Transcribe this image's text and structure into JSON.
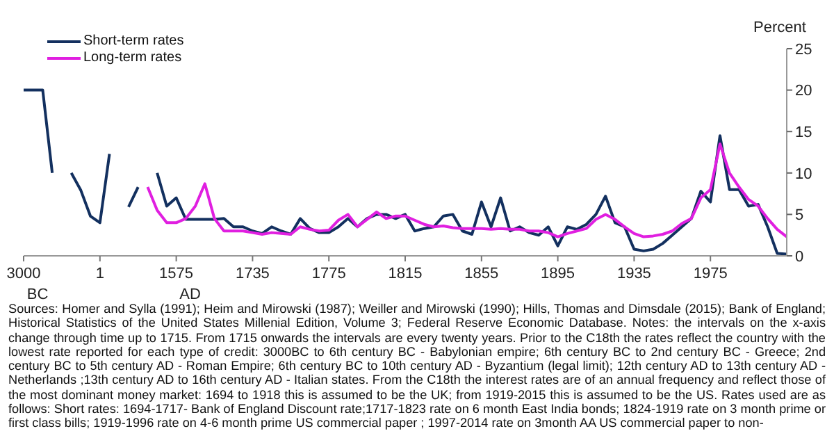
{
  "chart_data": {
    "type": "line",
    "ylabel": "Percent",
    "legend": "top left",
    "marker": "none",
    "grid": false,
    "categories": [
      "3000 BC",
      null,
      null,
      null,
      null,
      null,
      null,
      null,
      "1",
      null,
      null,
      null,
      null,
      null,
      null,
      null,
      "1575 AD",
      null,
      null,
      null,
      null,
      null,
      null,
      null,
      "1735",
      null,
      null,
      null,
      null,
      null,
      null,
      null,
      "1775",
      null,
      null,
      null,
      null,
      null,
      null,
      null,
      "1815",
      null,
      null,
      null,
      null,
      null,
      null,
      null,
      "1855",
      null,
      null,
      null,
      null,
      null,
      null,
      null,
      "1895",
      null,
      null,
      null,
      null,
      null,
      null,
      null,
      "1935",
      null,
      null,
      null,
      null,
      null,
      null,
      null,
      "1975",
      null,
      null,
      null,
      null,
      null,
      null,
      null,
      null
    ],
    "series": [
      {
        "name": "Short-term rates",
        "color": "#13305f",
        "values": [
          20,
          20,
          20,
          10,
          null,
          10,
          7.9,
          4.8,
          4,
          12.3,
          null,
          5.9,
          8.3,
          null,
          10,
          6,
          7,
          4.4,
          4.4,
          4.4,
          4.4,
          4.5,
          3.5,
          3.5,
          3,
          2.7,
          3.5,
          3,
          2.6,
          4.5,
          3.3,
          2.8,
          2.8,
          3.5,
          4.5,
          3.5,
          4.5,
          5,
          5,
          4.5,
          5,
          3,
          3.3,
          3.5,
          4.8,
          5,
          3,
          2.6,
          6.5,
          3.5,
          7,
          3,
          3.5,
          2.8,
          2.5,
          3.5,
          1.2,
          3.5,
          3.2,
          3.8,
          5,
          7.2,
          4,
          3.5,
          0.8,
          0.6,
          0.8,
          1.5,
          2.5,
          3.5,
          4.5,
          7.8,
          6.5,
          14.5,
          8,
          8,
          6,
          6.2,
          3.5,
          0.3,
          0.2
        ]
      },
      {
        "name": "Long-term rates",
        "color": "#e01fe0",
        "values": [
          null,
          null,
          null,
          null,
          null,
          null,
          null,
          null,
          null,
          null,
          null,
          null,
          null,
          8.3,
          5.5,
          4,
          4,
          4.5,
          6,
          8.7,
          4.5,
          3,
          3,
          3,
          2.8,
          2.6,
          2.8,
          2.7,
          2.6,
          3.5,
          3.2,
          3,
          3.1,
          4.3,
          5,
          3.5,
          4.4,
          5.3,
          4.5,
          4.8,
          4.8,
          4.3,
          3.8,
          3.5,
          3.6,
          3.4,
          3.3,
          3.3,
          3.3,
          3.2,
          3.3,
          3.2,
          3.2,
          3,
          3,
          2.8,
          2.3,
          2.7,
          3,
          3.3,
          4.4,
          5,
          4.4,
          3.5,
          2.7,
          2.3,
          2.4,
          2.6,
          3,
          3.9,
          4.5,
          7,
          8,
          13.5,
          10,
          8.3,
          6.8,
          6,
          4.5,
          3.2,
          2.3
        ]
      }
    ],
    "ylim": [
      0,
      25
    ],
    "yticks": [
      0,
      5,
      10,
      15,
      20,
      25
    ],
    "annotations": [
      "Sources: Homer and Sylla (1991); Heim and Mirowski (1987); Weiller and Mirowski (1990); Hills, Thomas and Dimsdale (2015); Bank of England; Historical Statistics of the United States Millenial Edition, Volume 3; Federal Reserve Economic Database. Notes: the intervals on the x-axis change through time up to 1715. From 1715 onwards the intervals are every twenty years. Prior to the C18th the rates reflect the country with the lowest rate reported for each type of credit: 3000BC to 6th century BC - Babylonian empire; 6th century BC to 2nd century BC - Greece; 2nd century BC to 5th century AD - Roman Empire; 6th century BC to 10th century AD - Byzantium (legal limit); 12th century AD to 13th century AD - Netherlands ;13th century AD to 16th century AD - Italian states. From the C18th the interest rates are of an annual frequency and reflect those of the most dominant money market: 1694 to 1918 this is assumed to be the UK; from 1919-2015 this is assumed to be the US. Rates used are as follows: Short rates: 1694-1717- Bank of England Discount rate;1717-1823 rate on 6 month East India bonds; 1824-1919 rate on 3 month prime or first class bills; 1919-1996 rate on 4-6 month prime US commercial paper ; 1997-2014 rate on 3month AA US commercial paper to non-"
    ]
  }
}
